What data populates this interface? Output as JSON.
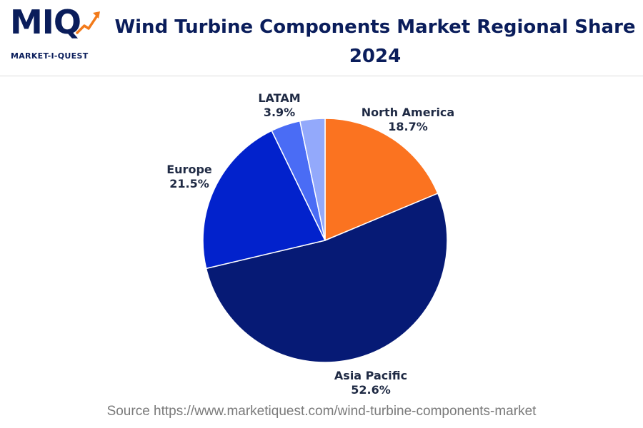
{
  "logo": {
    "mark": "MIQ",
    "tagline": "MARKET-I-QUEST"
  },
  "title": "Wind Turbine Components Market Regional Share 2024",
  "source": "Source https://www.marketiquest.com/wind-turbine-components-market",
  "chart_data": {
    "type": "pie",
    "title": "Wind Turbine Components Market Regional Share 2024",
    "unit": "%",
    "slices": [
      {
        "label": "North America",
        "value": 18.7,
        "value_text": "18.7%",
        "color": "#fb7320"
      },
      {
        "label": "Asia Pacific",
        "value": 52.6,
        "value_text": "52.6%",
        "color": "#061a75"
      },
      {
        "label": "Europe",
        "value": 21.5,
        "value_text": "21.5%",
        "color": "#0222cc"
      },
      {
        "label": "LATAM",
        "value": 3.9,
        "value_text": "3.9%",
        "color": "#4a6cf5"
      },
      {
        "label": "",
        "value": 3.3,
        "value_text": "",
        "color": "#93a9fb"
      }
    ],
    "start": "top",
    "direction": "clockwise",
    "legend": "none"
  }
}
